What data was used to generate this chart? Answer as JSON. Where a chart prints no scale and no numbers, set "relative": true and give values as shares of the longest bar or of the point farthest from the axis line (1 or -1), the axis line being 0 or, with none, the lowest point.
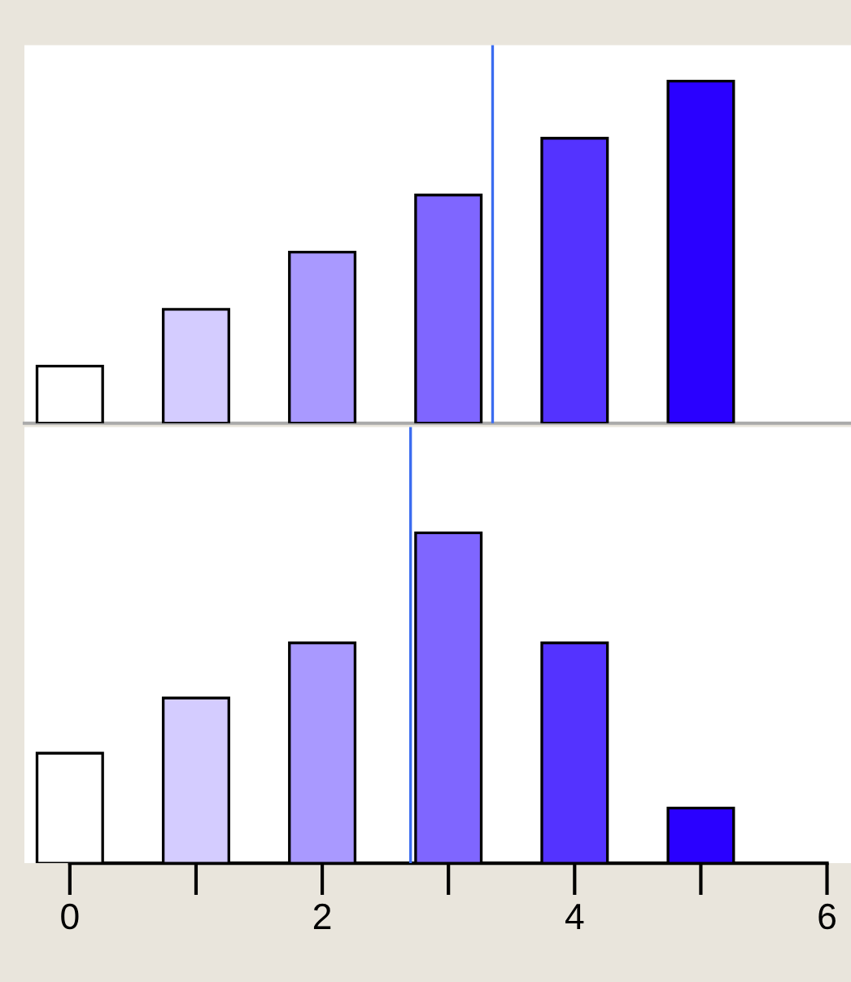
{
  "chart_data": [
    {
      "type": "bar",
      "relative": true,
      "x": [
        0,
        1,
        2,
        3,
        4,
        5
      ],
      "values": [
        0.167,
        0.333,
        0.5,
        0.667,
        0.833,
        1
      ],
      "colors": [
        "#ffffff",
        "#d4ccff",
        "#a999ff",
        "#7f66ff",
        "#5433ff",
        "#2a00ff"
      ],
      "xlim": [
        -0.36,
        6.19
      ],
      "tick_labels": false,
      "ref_lines": [
        {
          "axis": "x",
          "value": 3.35,
          "color": "#3b6cf0"
        }
      ]
    },
    {
      "type": "bar",
      "relative": true,
      "x": [
        0,
        1,
        2,
        3,
        4,
        5
      ],
      "values": [
        0.333,
        0.5,
        0.667,
        1,
        0.667,
        0.167
      ],
      "colors": [
        "#ffffff",
        "#d4ccff",
        "#a999ff",
        "#7f66ff",
        "#5433ff",
        "#2a00ff"
      ],
      "xlim": [
        -0.36,
        6.19
      ],
      "tick_labels": "x",
      "xticks": [
        0,
        2,
        4,
        6
      ],
      "ref_lines": [
        {
          "axis": "x",
          "value": 2.7,
          "color": "#3b6cf0"
        }
      ]
    }
  ]
}
